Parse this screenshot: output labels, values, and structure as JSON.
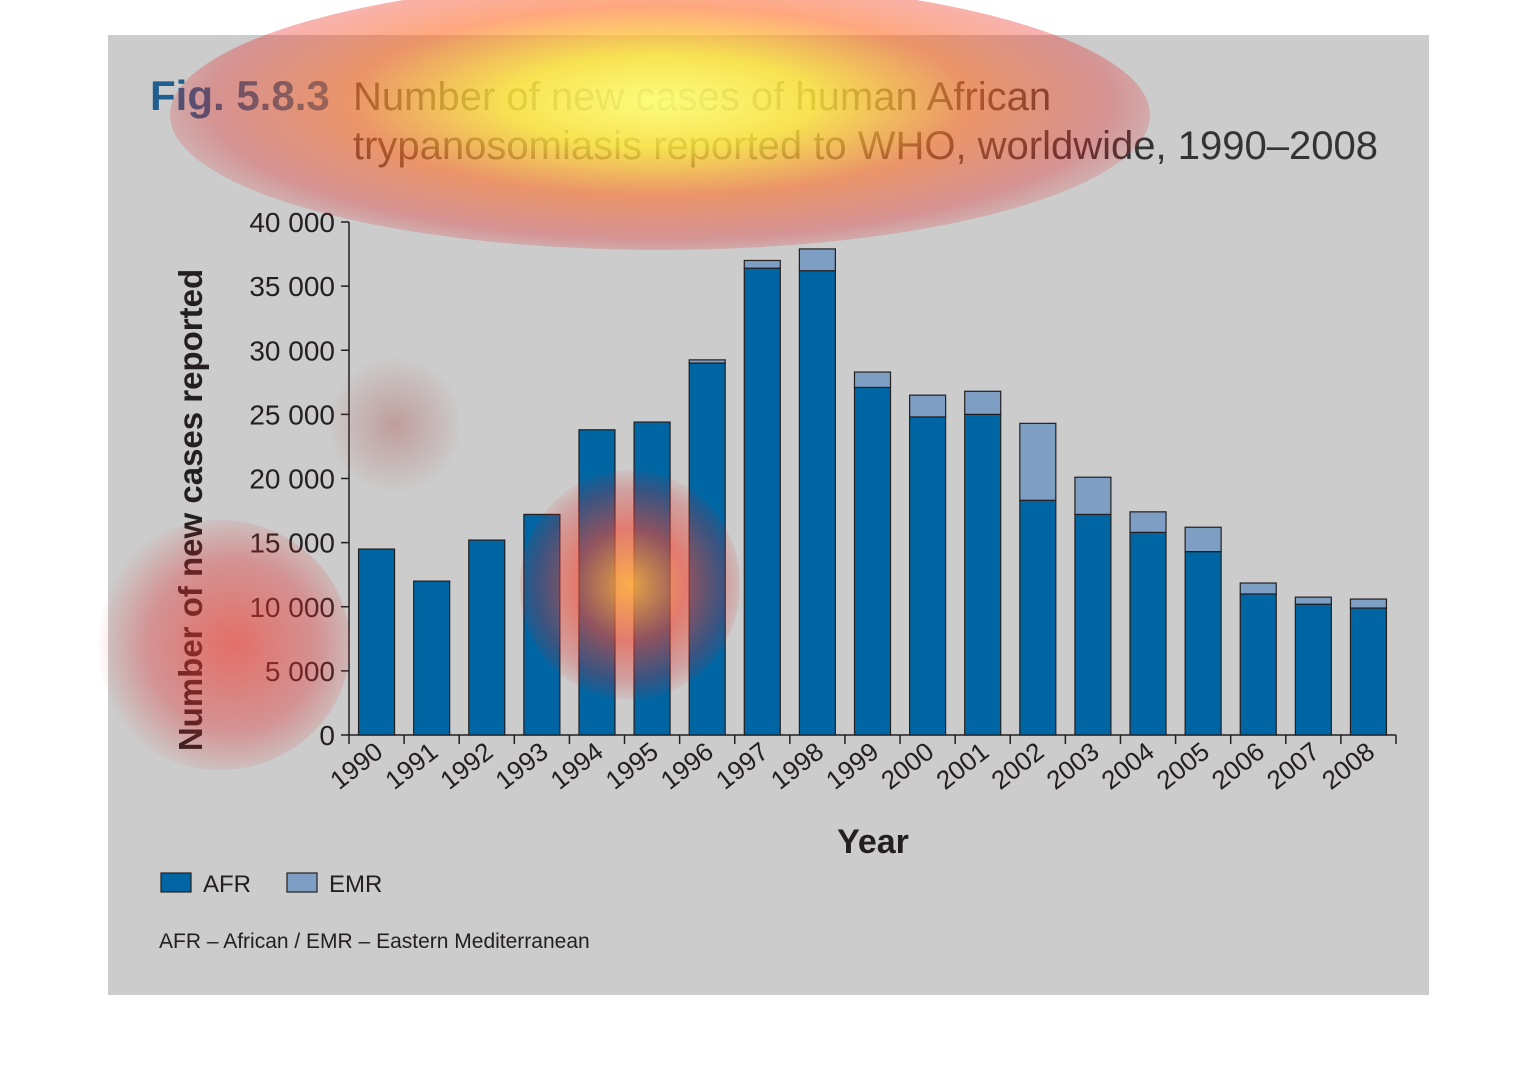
{
  "figure": {
    "label": "Fig. 5.8.3",
    "title_line1": "Number of new cases of human African",
    "title_line2": "trypanosomiasis reported to WHO, worldwide, 1990–2008",
    "footnote": "AFR – African / EMR – Eastern Mediterranean"
  },
  "colors": {
    "panel": "#cccccc",
    "label_blue": "#1f5f8f",
    "title_text": "#333333",
    "afr": "#0066a3",
    "emr": "#7f9ec4"
  },
  "chart_data": {
    "type": "bar",
    "stacked": true,
    "title": "Number of new cases of human African trypanosomiasis reported to WHO, worldwide, 1990–2008",
    "xlabel": "Year",
    "ylabel": "Number of new cases reported",
    "ylim": [
      0,
      40000
    ],
    "yticks": [
      0,
      5000,
      10000,
      15000,
      20000,
      25000,
      30000,
      35000,
      40000
    ],
    "ytick_labels": [
      "0",
      "5 000",
      "10 000",
      "15 000",
      "20 000",
      "25 000",
      "30 000",
      "35 000",
      "40 000"
    ],
    "categories": [
      "1990",
      "1991",
      "1992",
      "1993",
      "1994",
      "1995",
      "1996",
      "1997",
      "1998",
      "1999",
      "2000",
      "2001",
      "2002",
      "2003",
      "2004",
      "2005",
      "2006",
      "2007",
      "2008"
    ],
    "series": [
      {
        "name": "AFR",
        "values": [
          14500,
          12000,
          15200,
          17200,
          23800,
          24400,
          29000,
          36400,
          36200,
          27100,
          24800,
          25000,
          18300,
          17200,
          15800,
          14300,
          11000,
          10200,
          9900
        ]
      },
      {
        "name": "EMR",
        "values": [
          0,
          0,
          0,
          0,
          0,
          0,
          250,
          600,
          1700,
          1200,
          1700,
          1800,
          6000,
          2900,
          1600,
          1900,
          850,
          550,
          700
        ]
      }
    ],
    "legend": {
      "position": "bottom-left",
      "entries": [
        "AFR",
        "EMR"
      ]
    },
    "grid": false
  }
}
